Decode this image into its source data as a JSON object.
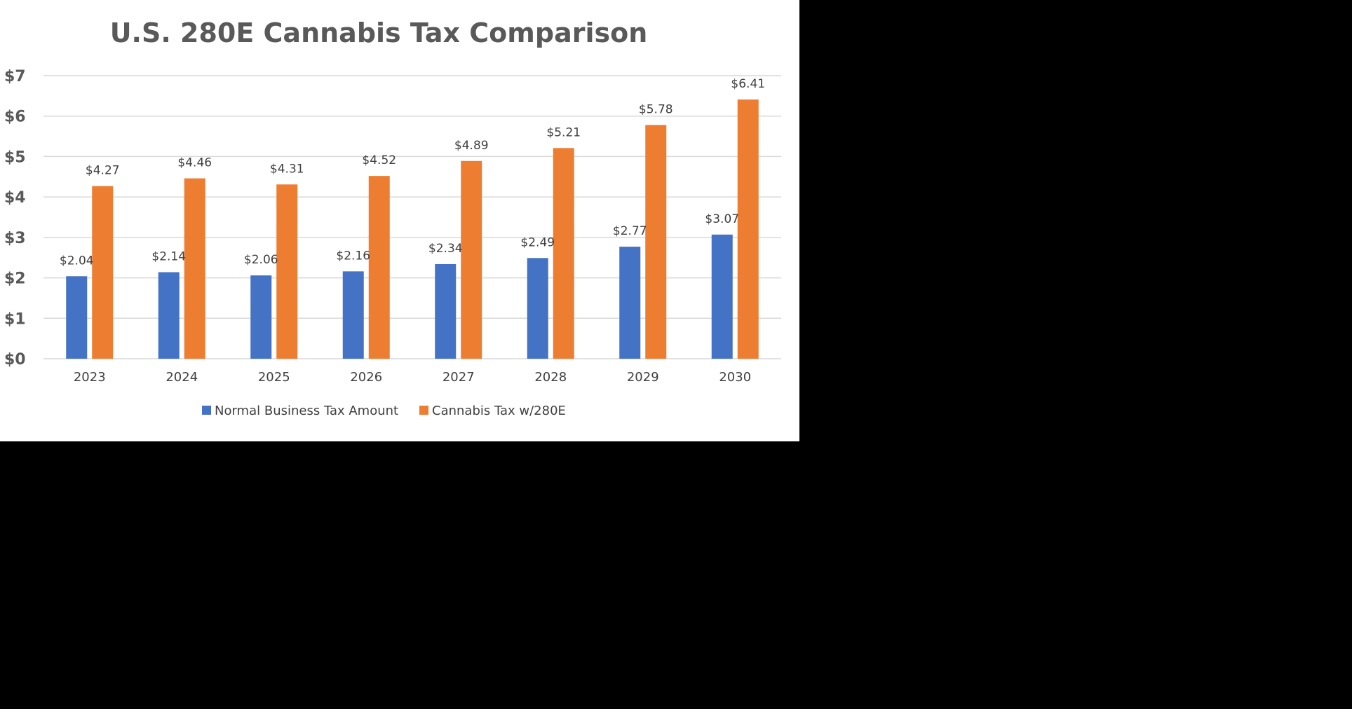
{
  "chart_data": {
    "type": "bar",
    "title": "U.S. 280E Cannabis Tax Comparison",
    "xlabel": "",
    "ylabel": "",
    "categories": [
      "2023",
      "2024",
      "2025",
      "2026",
      "2027",
      "2028",
      "2029",
      "2030"
    ],
    "series": [
      {
        "name": "Normal Business Tax Amount",
        "color": "#4472C4",
        "values": [
          2.04,
          2.14,
          2.06,
          2.16,
          2.34,
          2.49,
          2.77,
          3.07
        ],
        "labels": [
          "$2.04",
          "$2.14",
          "$2.06",
          "$2.16",
          "$2.34",
          "$2.49",
          "$2.77",
          "$3.07"
        ]
      },
      {
        "name": "Cannabis Tax w/280E",
        "color": "#ED7D31",
        "values": [
          4.27,
          4.46,
          4.31,
          4.52,
          4.89,
          5.21,
          5.78,
          6.41
        ],
        "labels": [
          "$4.27",
          "$4.46",
          "$4.31",
          "$4.52",
          "$4.89",
          "$5.21",
          "$5.78",
          "$6.41"
        ]
      }
    ],
    "ylim": [
      0,
      7
    ],
    "yticks": [
      0,
      1,
      2,
      3,
      4,
      5,
      6,
      7
    ],
    "ytick_labels": [
      "$0",
      "$1",
      "$2",
      "$3",
      "$4",
      "$5",
      "$6",
      "$7"
    ],
    "grid": true,
    "legend_position": "bottom"
  }
}
